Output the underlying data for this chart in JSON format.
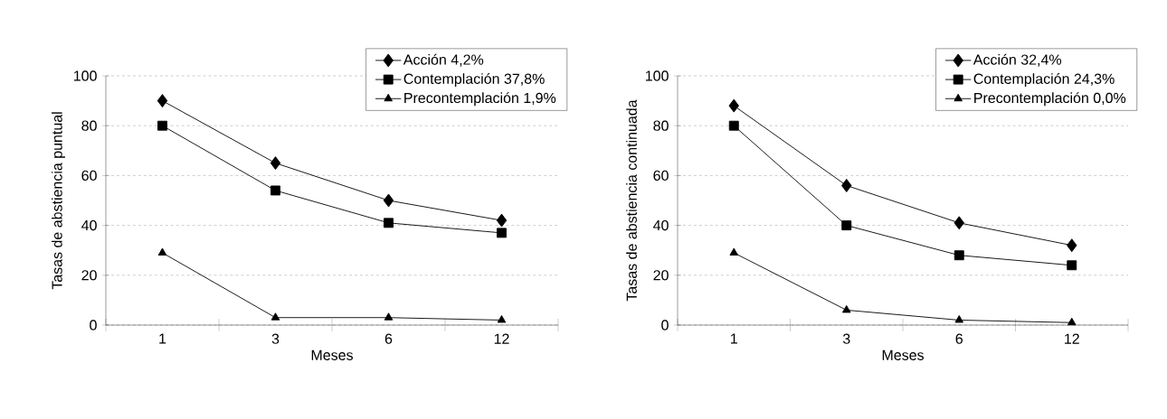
{
  "chart_data": [
    {
      "type": "line",
      "xlabel": "Meses",
      "ylabel": "Tasas de abstiencia puntual",
      "categories": [
        "1",
        "3",
        "6",
        "12"
      ],
      "ylim": [
        0,
        100
      ],
      "yticks": [
        0,
        20,
        40,
        60,
        80,
        100
      ],
      "grid": "y",
      "legend": "top right",
      "series": [
        {
          "name": "Acción 4,2%",
          "color": "#000000",
          "marker": "diamond",
          "values": [
            90,
            65,
            50,
            42
          ]
        },
        {
          "name": "Contemplación 37,8%",
          "color": "#000000",
          "marker": "square",
          "values": [
            80,
            54,
            41,
            37
          ]
        },
        {
          "name": "Precontemplación 1,9%",
          "color": "#000000",
          "marker": "triangle",
          "values": [
            29,
            3,
            3,
            2
          ]
        }
      ]
    },
    {
      "type": "line",
      "xlabel": "Meses",
      "ylabel": "Tasas de abstiencia continuada",
      "categories": [
        "1",
        "3",
        "6",
        "12"
      ],
      "ylim": [
        0,
        100
      ],
      "yticks": [
        0,
        20,
        40,
        60,
        80,
        100
      ],
      "grid": "y",
      "legend": "top right",
      "series": [
        {
          "name": "Acción 32,4%",
          "color": "#000000",
          "marker": "diamond",
          "values": [
            88,
            56,
            41,
            32
          ]
        },
        {
          "name": "Contemplación 24,3%",
          "color": "#000000",
          "marker": "square",
          "values": [
            80,
            40,
            28,
            24
          ]
        },
        {
          "name": "Precontemplación 0,0%",
          "color": "#000000",
          "marker": "triangle",
          "values": [
            29,
            6,
            2,
            1
          ]
        }
      ]
    }
  ]
}
